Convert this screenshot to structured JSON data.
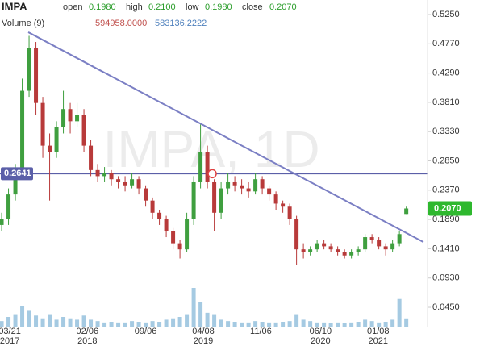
{
  "chart_data": {
    "type": "candlestick",
    "symbol": "IMPA",
    "ohlc_labels": {
      "open": "open",
      "high": "high",
      "low": "low",
      "close": "close"
    },
    "ohlc_values": {
      "open": "0.1980",
      "high": "0.2100",
      "low": "0.1980",
      "close": "0.2070"
    },
    "volume_label": "Volume (9)",
    "volume_values": [
      "594958.0000",
      "583136.2222"
    ],
    "watermark": "IMPA, 1D",
    "up_color": "#3f9f3f",
    "down_color": "#b83a3a",
    "volume_color": "#7fb3d5",
    "open": [
      0.18,
      0.19,
      0.23,
      0.27,
      0.4,
      0.47,
      0.38,
      0.31,
      0.3,
      0.34,
      0.37,
      0.35,
      0.36,
      0.31,
      0.27,
      0.26,
      0.265,
      0.255,
      0.25,
      0.245,
      0.255,
      0.24,
      0.22,
      0.2,
      0.19,
      0.17,
      0.15,
      0.14,
      0.19,
      0.25,
      0.3,
      0.25,
      0.2,
      0.24,
      0.25,
      0.245,
      0.24,
      0.235,
      0.255,
      0.24,
      0.23,
      0.215,
      0.21,
      0.19,
      0.14,
      0.135,
      0.14,
      0.15,
      0.145,
      0.14,
      0.135,
      0.13,
      0.135,
      0.14,
      0.16,
      0.155,
      0.145,
      0.14,
      0.15,
      0.198
    ],
    "high": [
      0.2,
      0.24,
      0.28,
      0.42,
      0.49,
      0.48,
      0.39,
      0.33,
      0.35,
      0.4,
      0.38,
      0.38,
      0.37,
      0.32,
      0.28,
      0.275,
      0.27,
      0.26,
      0.26,
      0.265,
      0.26,
      0.245,
      0.225,
      0.205,
      0.195,
      0.175,
      0.155,
      0.2,
      0.26,
      0.345,
      0.31,
      0.255,
      0.25,
      0.265,
      0.26,
      0.255,
      0.25,
      0.265,
      0.26,
      0.245,
      0.235,
      0.22,
      0.215,
      0.195,
      0.15,
      0.145,
      0.155,
      0.155,
      0.15,
      0.145,
      0.14,
      0.14,
      0.145,
      0.165,
      0.165,
      0.16,
      0.15,
      0.155,
      0.17,
      0.21
    ],
    "low": [
      0.17,
      0.18,
      0.22,
      0.26,
      0.39,
      0.36,
      0.29,
      0.22,
      0.29,
      0.33,
      0.33,
      0.34,
      0.3,
      0.26,
      0.25,
      0.25,
      0.245,
      0.24,
      0.235,
      0.24,
      0.23,
      0.21,
      0.19,
      0.18,
      0.16,
      0.14,
      0.125,
      0.135,
      0.18,
      0.24,
      0.24,
      0.17,
      0.19,
      0.23,
      0.235,
      0.23,
      0.225,
      0.23,
      0.23,
      0.22,
      0.205,
      0.2,
      0.18,
      0.115,
      0.125,
      0.13,
      0.135,
      0.14,
      0.135,
      0.13,
      0.125,
      0.125,
      0.13,
      0.135,
      0.15,
      0.14,
      0.13,
      0.135,
      0.145,
      0.198
    ],
    "close": [
      0.19,
      0.23,
      0.27,
      0.4,
      0.47,
      0.38,
      0.31,
      0.3,
      0.34,
      0.37,
      0.35,
      0.36,
      0.31,
      0.27,
      0.26,
      0.265,
      0.255,
      0.25,
      0.245,
      0.255,
      0.24,
      0.22,
      0.2,
      0.19,
      0.17,
      0.15,
      0.14,
      0.19,
      0.25,
      0.3,
      0.25,
      0.2,
      0.24,
      0.25,
      0.245,
      0.24,
      0.235,
      0.255,
      0.24,
      0.23,
      0.215,
      0.21,
      0.19,
      0.14,
      0.135,
      0.14,
      0.15,
      0.145,
      0.14,
      0.135,
      0.13,
      0.135,
      0.14,
      0.16,
      0.155,
      0.145,
      0.14,
      0.15,
      0.165,
      0.207
    ],
    "volume": [
      400000,
      700000,
      900000,
      1500000,
      1200000,
      800000,
      600000,
      900000,
      500000,
      700000,
      600000,
      500000,
      800000,
      500000,
      400000,
      300000,
      350000,
      300000,
      300000,
      400000,
      350000,
      300000,
      400000,
      350000,
      500000,
      600000,
      700000,
      900000,
      2800000,
      1800000,
      1000000,
      900000,
      500000,
      400000,
      350000,
      300000,
      300000,
      400000,
      350000,
      300000,
      300000,
      350000,
      400000,
      900000,
      500000,
      400000,
      300000,
      300000,
      250000,
      300000,
      250000,
      300000,
      350000,
      500000,
      400000,
      300000,
      350000,
      500000,
      2000000,
      594958
    ],
    "volume_lim": [
      0,
      3500000
    ],
    "xlim": [
      -0.24,
      62.1
    ],
    "xticks": [
      {
        "value": 1.18,
        "label": "03/21\n2017"
      },
      {
        "value": 12.5,
        "label": "02/06\n2018"
      },
      {
        "value": 21,
        "label": "09/06"
      },
      {
        "value": 29.4,
        "label": "04/08\n2019"
      },
      {
        "value": 37.8,
        "label": "11/06"
      },
      {
        "value": 46.5,
        "label": "06/10\n2020"
      },
      {
        "value": 54.9,
        "label": "01/08\n2021"
      }
    ],
    "ylim": [
      0.0133,
      0.5488
    ],
    "yticks": [
      {
        "value": 0.525,
        "label": "0.5250"
      },
      {
        "value": 0.477,
        "label": "0.4770"
      },
      {
        "value": 0.429,
        "label": "0.4290"
      },
      {
        "value": 0.381,
        "label": "0.3810"
      },
      {
        "value": 0.333,
        "label": "0.3330"
      },
      {
        "value": 0.285,
        "label": "0.2850"
      },
      {
        "value": 0.237,
        "label": "0.2370"
      },
      {
        "value": 0.189,
        "label": "0.1890"
      },
      {
        "value": 0.141,
        "label": "0.1410"
      },
      {
        "value": 0.093,
        "label": "0.0930"
      },
      {
        "value": 0.045,
        "label": "0.0450"
      }
    ],
    "horizontal_line": {
      "value": 0.2641,
      "label": "0.2641",
      "color": "#5b5fa8"
    },
    "trendline": {
      "x": [
        3.88,
        61.5
      ],
      "y": [
        0.496,
        0.152
      ],
      "color": "#7b7fc4"
    },
    "marker": {
      "x": 30.7,
      "y": 0.2641,
      "color": "#e04040"
    },
    "last_price": {
      "value": 0.207,
      "label": "0.2070",
      "color": "#2eb82e"
    }
  }
}
